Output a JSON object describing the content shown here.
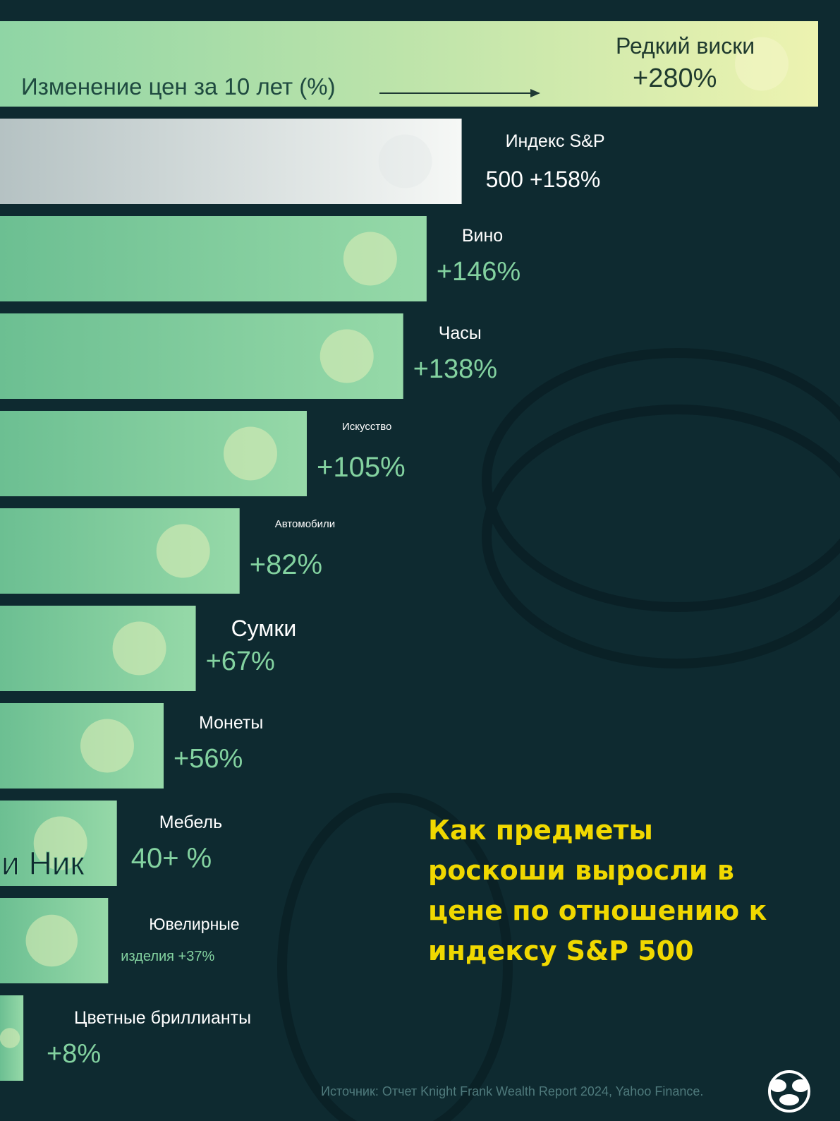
{
  "chart_data": {
    "type": "bar",
    "orientation": "horizontal",
    "title": "Как предметы роскоши выросли в цене по отношению к индексу S&P 500",
    "value_label": "Изменение цен за 10 лет (%)",
    "categories": [
      "Редкий виски",
      "Индекс S&P 500",
      "Вино",
      "Часы",
      "Искусство",
      "Автомобили",
      "Сумки",
      "Монеты",
      "Мебель",
      "Ювелирные изделия",
      "Цветные бриллианты"
    ],
    "values": [
      280,
      158,
      146,
      138,
      105,
      82,
      67,
      56,
      40,
      37,
      8
    ],
    "name_labels": [
      "Редкий виски",
      "Индекс S&P",
      "Вино",
      "Часы",
      "Искусство",
      "Автомобили",
      "Сумки",
      "Монеты",
      "Мебель",
      "Ювелирные",
      "Цветные бриллианты"
    ],
    "value_labels": [
      "+280%",
      "500 +158%",
      "+146%",
      "+138%",
      "+105%",
      "+82%",
      "+67%",
      "+56%",
      "40+ %",
      "изделия +37%",
      "+8%"
    ],
    "icons": [
      "whisky-bottle-icon",
      "growth-chart-icon",
      "wine-bottle-icon",
      "watch-icon",
      "painting-icon",
      "car-icon",
      "handbag-icon",
      "coins-icon",
      "furniture-icon",
      "bracelet-icon",
      "diamond-icon"
    ],
    "grid": false,
    "legend": "none"
  },
  "overlay_text": "и Ник",
  "source": "Источник: Отчет Knight Frank Wealth Report 2024, Yahoo Finance.",
  "logo_icon": "mascot-logo-icon",
  "colors": {
    "background": "#0e2a30",
    "bar_top": "#e6f2a6",
    "bar_sp": "#e8ecea",
    "bar_green": "#84d0a2",
    "title": "#f0d800",
    "value_text": "#83d2a0",
    "name_text": "#ffffff"
  }
}
